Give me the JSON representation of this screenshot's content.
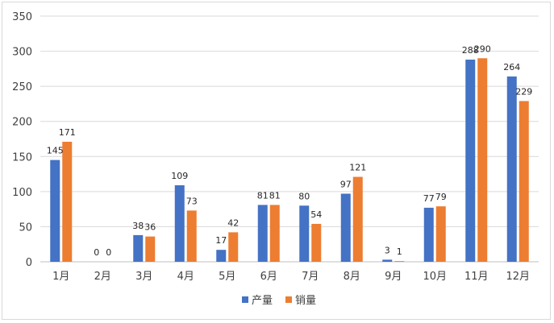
{
  "chart_data": {
    "type": "bar",
    "categories": [
      "1月",
      "2月",
      "3月",
      "4月",
      "5月",
      "6月",
      "7月",
      "8月",
      "9月",
      "10月",
      "11月",
      "12月"
    ],
    "series": [
      {
        "name": "产量",
        "color": "#4472c4",
        "values": [
          145,
          0,
          38,
          109,
          17,
          81,
          80,
          97,
          3,
          77,
          288,
          264
        ]
      },
      {
        "name": "销量",
        "color": "#ed7d31",
        "values": [
          171,
          0,
          36,
          73,
          42,
          81,
          54,
          121,
          1,
          79,
          290,
          229
        ]
      }
    ],
    "ylim": [
      0,
      350
    ],
    "yticks": [
      0,
      50,
      100,
      150,
      200,
      250,
      300,
      350
    ],
    "grid": true,
    "legend_position": "bottom",
    "title": "",
    "xlabel": "",
    "ylabel": ""
  }
}
